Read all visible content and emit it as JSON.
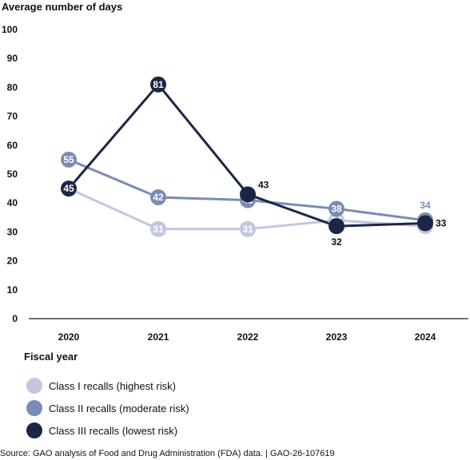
{
  "chart_data": {
    "type": "line",
    "title": "Average number of days",
    "xlabel": "Fiscal year",
    "ylabel": "",
    "x": [
      "2020",
      "2021",
      "2022",
      "2023",
      "2024"
    ],
    "ylim": [
      0,
      100
    ],
    "yticks": [
      "0",
      "10",
      "20",
      "30",
      "40",
      "50",
      "60",
      "70",
      "80",
      "90",
      "100"
    ],
    "grid": false,
    "legend_position": "bottom-left",
    "series": [
      {
        "name": "Class I recalls (highest risk)",
        "color": "#c2c7de",
        "values": [
          45,
          31,
          31,
          34,
          32
        ],
        "labels": [
          "45",
          "31",
          "31",
          "34",
          "32"
        ]
      },
      {
        "name": "Class II recalls (moderate risk)",
        "color": "#7b8bb5",
        "values": [
          55,
          42,
          41,
          38,
          34
        ],
        "labels": [
          "55",
          "42",
          "41",
          "38",
          "34"
        ]
      },
      {
        "name": "Class III recalls (lowest risk)",
        "color": "#1b2647",
        "values": [
          45,
          81,
          43,
          32,
          33
        ],
        "labels": [
          "45",
          "81",
          "43",
          "32",
          "33"
        ]
      }
    ],
    "source": "Source: GAO analysis of Food and Drug Administration (FDA) data.  |  GAO-26-107619"
  }
}
